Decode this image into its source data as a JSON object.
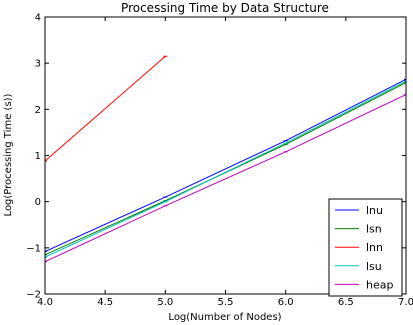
{
  "chart_data": {
    "type": "line",
    "title": "Processing Time by Data Structure",
    "xlabel": "Log(Number of Nodes)",
    "ylabel": "Log(Processing Time (s))",
    "xlim": [
      4.0,
      7.0
    ],
    "ylim": [
      -2,
      4
    ],
    "xticks": [
      "4.0",
      "4.5",
      "5.0",
      "5.5",
      "6.0",
      "6.5",
      "7.0"
    ],
    "yticks": [
      "4",
      "3",
      "2",
      "1",
      "0",
      "−1",
      "−2"
    ],
    "grid": false,
    "legend_position": "bottom-right",
    "series": [
      {
        "name": "lnu",
        "color": "#0000ff",
        "x": [
          4.0,
          5.0,
          6.0,
          7.0
        ],
        "y": [
          -1.08,
          0.1,
          1.32,
          2.65
        ]
      },
      {
        "name": "lsn",
        "color": "#008000",
        "x": [
          4.0,
          5.0,
          6.0,
          7.0
        ],
        "y": [
          -1.15,
          0.02,
          1.24,
          2.58
        ]
      },
      {
        "name": "lnn",
        "color": "#ff0000",
        "x": [
          4.0,
          5.0
        ],
        "y": [
          0.88,
          3.15
        ]
      },
      {
        "name": "lsu",
        "color": "#00bfbf",
        "x": [
          4.0,
          5.0,
          6.0,
          7.0
        ],
        "y": [
          -1.2,
          0.0,
          1.27,
          2.61
        ]
      },
      {
        "name": "heap",
        "color": "#bf00bf",
        "x": [
          4.0,
          5.0,
          6.0,
          7.0
        ],
        "y": [
          -1.3,
          -0.09,
          1.08,
          2.32
        ]
      }
    ]
  }
}
